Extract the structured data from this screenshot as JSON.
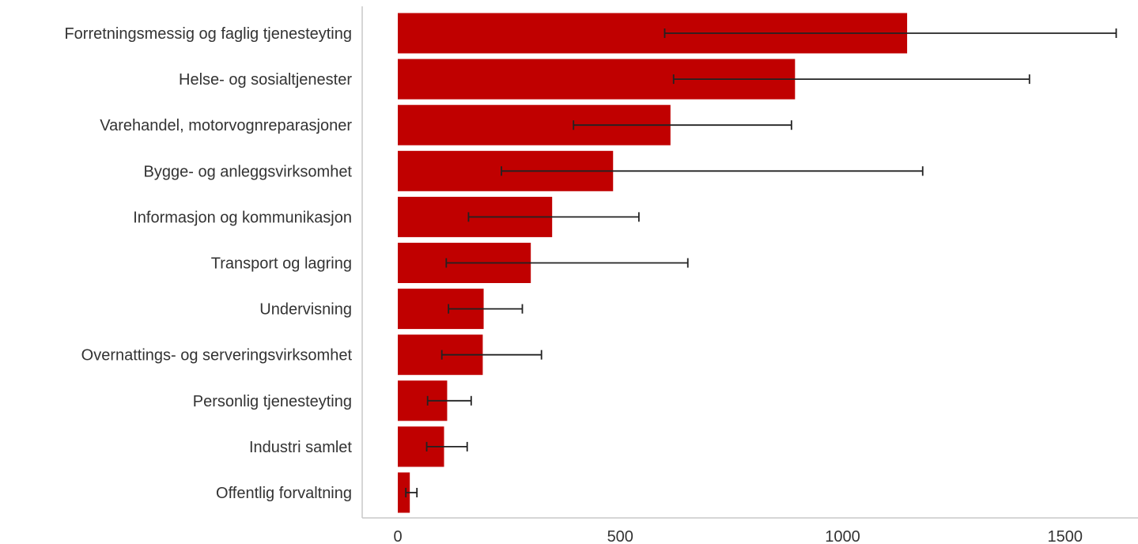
{
  "chart_data": {
    "type": "bar",
    "orientation": "horizontal",
    "categories": [
      "Forretningsmessig og faglig tjenesteyting",
      "Helse- og sosialtjenester",
      "Varehandel, motorvognreparasjoner",
      "Bygge- og anleggsvirksomhet",
      "Informasjon og kommunikasjon",
      "Transport og lagring",
      "Undervisning",
      "Overnattings- og serveringsvirksomhet",
      "Personlig tjenesteyting",
      "Industri samlet",
      "Offentlig forvaltning"
    ],
    "values": [
      1145,
      893,
      613,
      484,
      347,
      299,
      193,
      191,
      111,
      104,
      27
    ],
    "error_low": [
      600,
      620,
      395,
      233,
      159,
      109,
      114,
      99,
      67,
      65,
      18
    ],
    "error_high": [
      1615,
      1420,
      885,
      1180,
      542,
      652,
      280,
      323,
      165,
      156,
      43
    ],
    "xlim": [
      -80,
      1680
    ],
    "xticks": [
      0,
      500,
      1000,
      1500
    ],
    "xtick_labels": [
      "0",
      "500",
      "1000",
      "1500"
    ],
    "title": "",
    "xlabel": "",
    "ylabel": "",
    "grid": false,
    "bar_color": "#c00000",
    "error_color": "#222222"
  }
}
